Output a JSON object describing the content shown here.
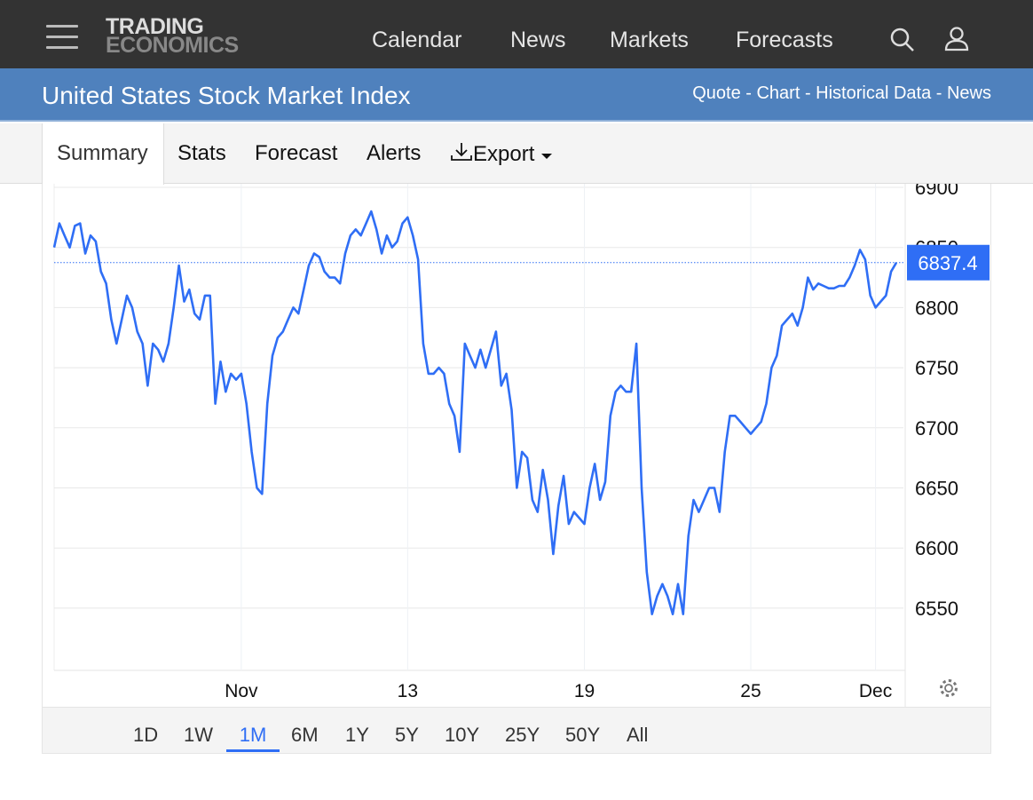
{
  "header": {
    "logo_line1": "TRADING",
    "logo_line2": "ECONOMICS",
    "nav": [
      "Calendar",
      "News",
      "Markets",
      "Forecasts"
    ]
  },
  "subheader": {
    "title": "United States Stock Market Index",
    "links": "Quote - Chart - Historical Data - News"
  },
  "tabs": {
    "summary": "Summary",
    "stats": "Stats",
    "forecast": "Forecast",
    "alerts": "Alerts",
    "export": "Export"
  },
  "ranges": [
    "1D",
    "1W",
    "1M",
    "6M",
    "1Y",
    "5Y",
    "10Y",
    "25Y",
    "50Y",
    "All"
  ],
  "active_range": "1M",
  "colors": {
    "line": "#2f6ef5",
    "topbar": "#333333",
    "subbar": "#4f81bd"
  },
  "chart_data": {
    "type": "line",
    "current_value": "6837.4",
    "ylim": [
      6500,
      6900
    ],
    "yticks": [
      6550,
      6600,
      6650,
      6700,
      6750,
      6800,
      6850,
      6900
    ],
    "xticks": [
      {
        "label": "Nov",
        "index": 36
      },
      {
        "label": "13",
        "index": 68
      },
      {
        "label": "19",
        "index": 102
      },
      {
        "label": "25",
        "index": 134
      },
      {
        "label": "Dec",
        "index": 158
      }
    ],
    "values": [
      6850,
      6870,
      6860,
      6850,
      6868,
      6870,
      6845,
      6860,
      6855,
      6830,
      6820,
      6790,
      6770,
      6790,
      6810,
      6800,
      6780,
      6770,
      6735,
      6770,
      6765,
      6755,
      6770,
      6800,
      6835,
      6805,
      6815,
      6795,
      6790,
      6810,
      6810,
      6720,
      6755,
      6730,
      6745,
      6740,
      6745,
      6720,
      6680,
      6650,
      6645,
      6720,
      6760,
      6775,
      6780,
      6790,
      6800,
      6795,
      6815,
      6835,
      6845,
      6842,
      6830,
      6825,
      6825,
      6820,
      6845,
      6860,
      6865,
      6860,
      6870,
      6880,
      6865,
      6845,
      6860,
      6850,
      6855,
      6870,
      6875,
      6860,
      6840,
      6770,
      6745,
      6745,
      6750,
      6745,
      6720,
      6710,
      6680,
      6770,
      6760,
      6750,
      6765,
      6750,
      6765,
      6780,
      6735,
      6745,
      6715,
      6650,
      6680,
      6675,
      6640,
      6630,
      6665,
      6640,
      6595,
      6635,
      6660,
      6620,
      6630,
      6625,
      6620,
      6650,
      6670,
      6640,
      6655,
      6710,
      6730,
      6735,
      6730,
      6730,
      6770,
      6650,
      6580,
      6545,
      6560,
      6570,
      6560,
      6545,
      6570,
      6545,
      6610,
      6640,
      6630,
      6640,
      6650,
      6650,
      6630,
      6680,
      6710,
      6710,
      6705,
      6700,
      6695,
      6700,
      6705,
      6720,
      6750,
      6760,
      6785,
      6790,
      6795,
      6785,
      6800,
      6825,
      6815,
      6820,
      6818,
      6816,
      6816,
      6818,
      6818,
      6825,
      6835,
      6848,
      6840,
      6810,
      6800,
      6805,
      6810,
      6830,
      6837.4
    ]
  }
}
